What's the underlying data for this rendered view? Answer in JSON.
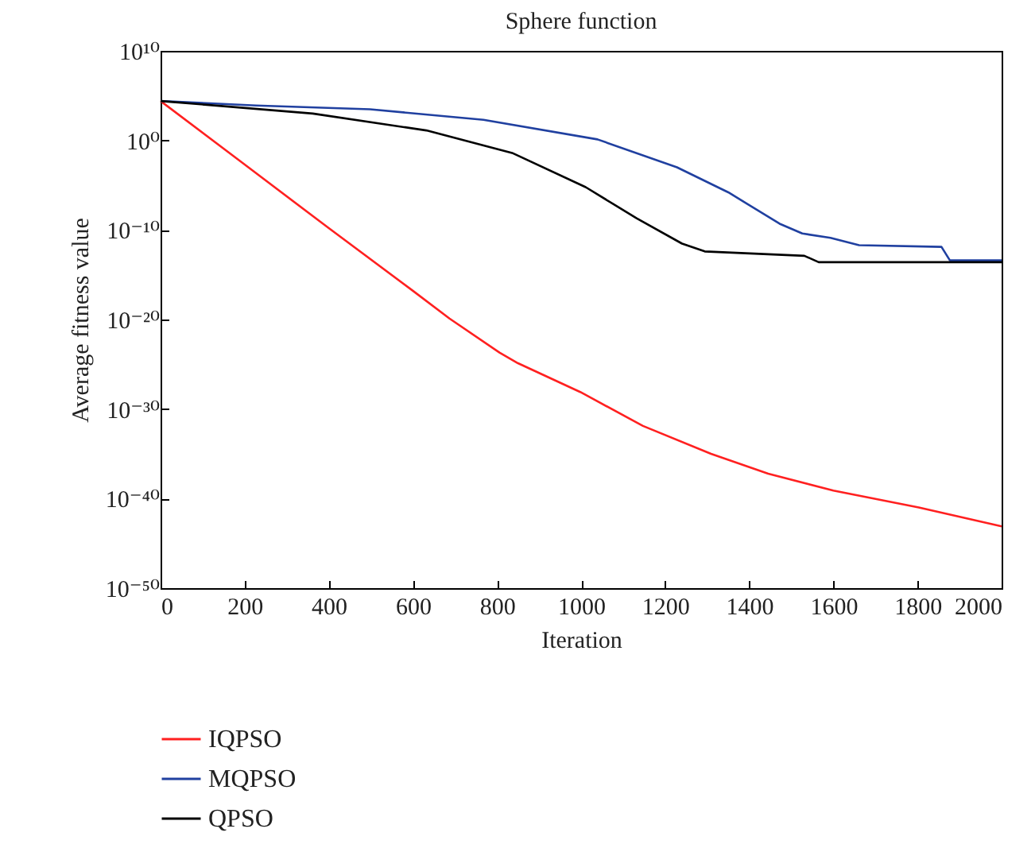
{
  "chart_data": {
    "type": "line",
    "title": "Sphere function",
    "xlabel": "Iteration",
    "ylabel": "Average fitness value",
    "log": "y",
    "grid": false,
    "legend": "bottom left",
    "xlim": [
      0,
      2000
    ],
    "xticks": [
      0,
      200,
      400,
      600,
      800,
      1000,
      1200,
      1400,
      1600,
      1800,
      2000
    ],
    "ylim": [
      1e-50,
      10000000000.0
    ],
    "yticks": [
      {
        "value": 10000000000.0,
        "label": "10¹⁰"
      },
      {
        "value": 1,
        "label": "10⁰"
      },
      {
        "value": 1e-10,
        "label": "10⁻¹⁰"
      },
      {
        "value": 1e-20,
        "label": "10⁻²⁰"
      },
      {
        "value": 1e-30,
        "label": "10⁻³⁰"
      },
      {
        "value": 1e-40,
        "label": "10⁻⁴⁰"
      },
      {
        "value": 1e-50,
        "label": "10⁻⁵⁰"
      }
    ],
    "series": [
      {
        "name": "IQPSO",
        "color": "#ff2020",
        "x": [
          0,
          200,
          400,
          600,
          687,
          806,
          850,
          998,
          1147,
          1309,
          1445,
          1600,
          1803,
          2000
        ],
        "values": [
          25000.0,
          0.002,
          1.6e-10,
          1.6e-17,
          1.3e-20,
          2e-24,
          1.3e-25,
          8e-29,
          1.3e-32,
          1e-35,
          6e-38,
          8e-40,
          1e-41,
          8e-44
        ]
      },
      {
        "name": "MQPSO",
        "color": "#2040a0",
        "x": [
          0,
          227,
          498,
          768,
          1039,
          1228,
          1350,
          1472,
          1526,
          1593,
          1661,
          1857,
          1877,
          2000
        ],
        "values": [
          25000.0,
          8000.0,
          3000.0,
          200.0,
          1.3,
          0.001,
          1.6e-06,
          5e-10,
          4e-11,
          1.3e-11,
          2e-12,
          1.3e-12,
          4e-14,
          4e-14
        ]
      },
      {
        "name": "QPSO",
        "color": "#000000",
        "x": [
          0,
          362,
          632,
          836,
          1011,
          1132,
          1240,
          1294,
          1531,
          1565,
          2000
        ],
        "values": [
          25000.0,
          1000.0,
          13.0,
          0.04,
          6e-06,
          2e-09,
          3e-12,
          4e-13,
          1.3e-13,
          2.5e-14,
          2.5e-14
        ]
      }
    ]
  }
}
